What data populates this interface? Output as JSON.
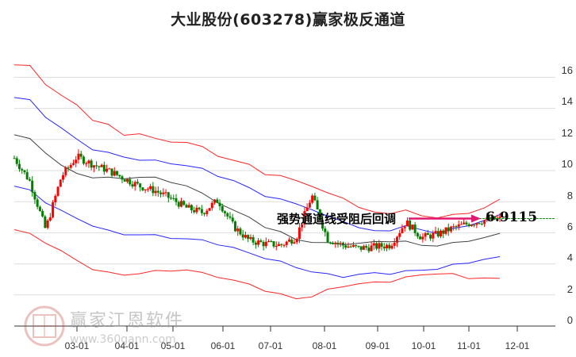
{
  "title": "大业股份(603278)赢家极反通道",
  "watermark": {
    "brand": "赢家江恩软件",
    "url": "www.360gann.com",
    "seal": [
      "江",
      "赢",
      "恩",
      "家"
    ]
  },
  "annotation": {
    "text": "强势通道线受阻后回调",
    "value": "6.9115",
    "arrow_color": "#e0196e",
    "ref_line_color": "#1a8a1a"
  },
  "colors": {
    "up": "#ff0000",
    "down": "#008000",
    "outer_band": "#ff0000",
    "inner_band": "#0000ff",
    "mid_line": "#222222",
    "grid": "#dddddd"
  },
  "chart_data": {
    "type": "candlestick",
    "title": "大业股份(603278)赢家极反通道",
    "xlabel": "",
    "ylabel": "",
    "ylim": [
      0,
      17
    ],
    "yticks": [
      0,
      2,
      4,
      6,
      8,
      10,
      12,
      14,
      16
    ],
    "xticks": [
      "03-01",
      "04-01",
      "05-01",
      "06-01",
      "07-01",
      "08-01",
      "09-01",
      "10-01",
      "11-01",
      "12-01"
    ],
    "grid": true,
    "series": [
      {
        "name": "outer_upper",
        "color": "#ff0000",
        "values": [
          16.8,
          16.7,
          15.6,
          14.8,
          14.2,
          13.3,
          12.9,
          12.3,
          12.4,
          12.0,
          11.9,
          11.8,
          11.5,
          11.0,
          10.6,
          10.4,
          9.8,
          9.6,
          9.4,
          9.0,
          8.5,
          8.3,
          7.6,
          7.3,
          7.3,
          7.4,
          7.1,
          7.0,
          7.1,
          7.3,
          7.6,
          8.1
        ]
      },
      {
        "name": "inner_upper",
        "color": "#0000ff",
        "values": [
          14.7,
          14.5,
          13.5,
          12.7,
          12.0,
          11.4,
          11.1,
          10.9,
          10.7,
          10.6,
          10.5,
          10.3,
          10.1,
          9.7,
          9.3,
          8.9,
          8.4,
          8.1,
          7.9,
          7.5,
          7.0,
          6.8,
          6.3,
          6.1,
          6.2,
          6.4,
          6.2,
          6.0,
          6.2,
          6.5,
          6.8,
          7.1
        ]
      },
      {
        "name": "mid",
        "color": "#222222",
        "values": [
          12.3,
          12.0,
          11.2,
          10.3,
          9.8,
          9.6,
          9.5,
          9.5,
          9.6,
          9.5,
          9.3,
          9.0,
          8.5,
          8.0,
          7.4,
          7.0,
          6.4,
          6.0,
          5.6,
          5.4,
          5.3,
          5.3,
          5.3,
          5.4,
          5.5,
          5.4,
          5.2,
          5.2,
          5.3,
          5.5,
          5.7,
          5.9
        ]
      },
      {
        "name": "inner_lower",
        "color": "#0000ff",
        "values": [
          9.0,
          8.7,
          8.0,
          7.4,
          6.9,
          6.5,
          6.1,
          5.9,
          5.9,
          5.8,
          5.7,
          5.6,
          5.5,
          5.3,
          5.0,
          4.7,
          4.4,
          4.1,
          3.8,
          3.5,
          3.3,
          3.2,
          3.3,
          3.4,
          3.4,
          3.5,
          3.6,
          3.7,
          3.9,
          4.1,
          4.3,
          4.4
        ]
      },
      {
        "name": "outer_lower",
        "color": "#ff0000",
        "values": [
          6.2,
          5.9,
          5.4,
          4.8,
          4.2,
          3.7,
          3.4,
          3.3,
          3.4,
          3.5,
          3.6,
          3.6,
          3.4,
          3.2,
          2.9,
          2.7,
          2.3,
          2.0,
          1.8,
          1.9,
          2.3,
          2.6,
          2.7,
          2.8,
          2.9,
          3.1,
          3.3,
          3.4,
          3.3,
          3.1,
          3.1,
          3.0
        ]
      }
    ],
    "price_close_approx": [
      10.8,
      9.3,
      6.2,
      9.6,
      10.9,
      10.4,
      10.0,
      9.5,
      9.0,
      8.7,
      8.2,
      7.6,
      7.3,
      8.1,
      6.4,
      5.5,
      5.3,
      5.2,
      5.7,
      8.4,
      5.6,
      5.2,
      5.0,
      5.1,
      5.2,
      6.7,
      5.7,
      5.9,
      6.3,
      6.6,
      6.8,
      6.9
    ],
    "annotation": {
      "text": "强势通道线受阻后回调",
      "value": 6.9115
    }
  },
  "yaxis": {
    "labels": [
      "16",
      "14",
      "12",
      "10",
      "8",
      "6",
      "4",
      "2",
      "0"
    ]
  },
  "xaxis": {
    "labels": [
      "03-01",
      "04-01",
      "05-01",
      "06-01",
      "07-01",
      "08-01",
      "09-01",
      "10-01",
      "11-01",
      "12-01"
    ]
  }
}
